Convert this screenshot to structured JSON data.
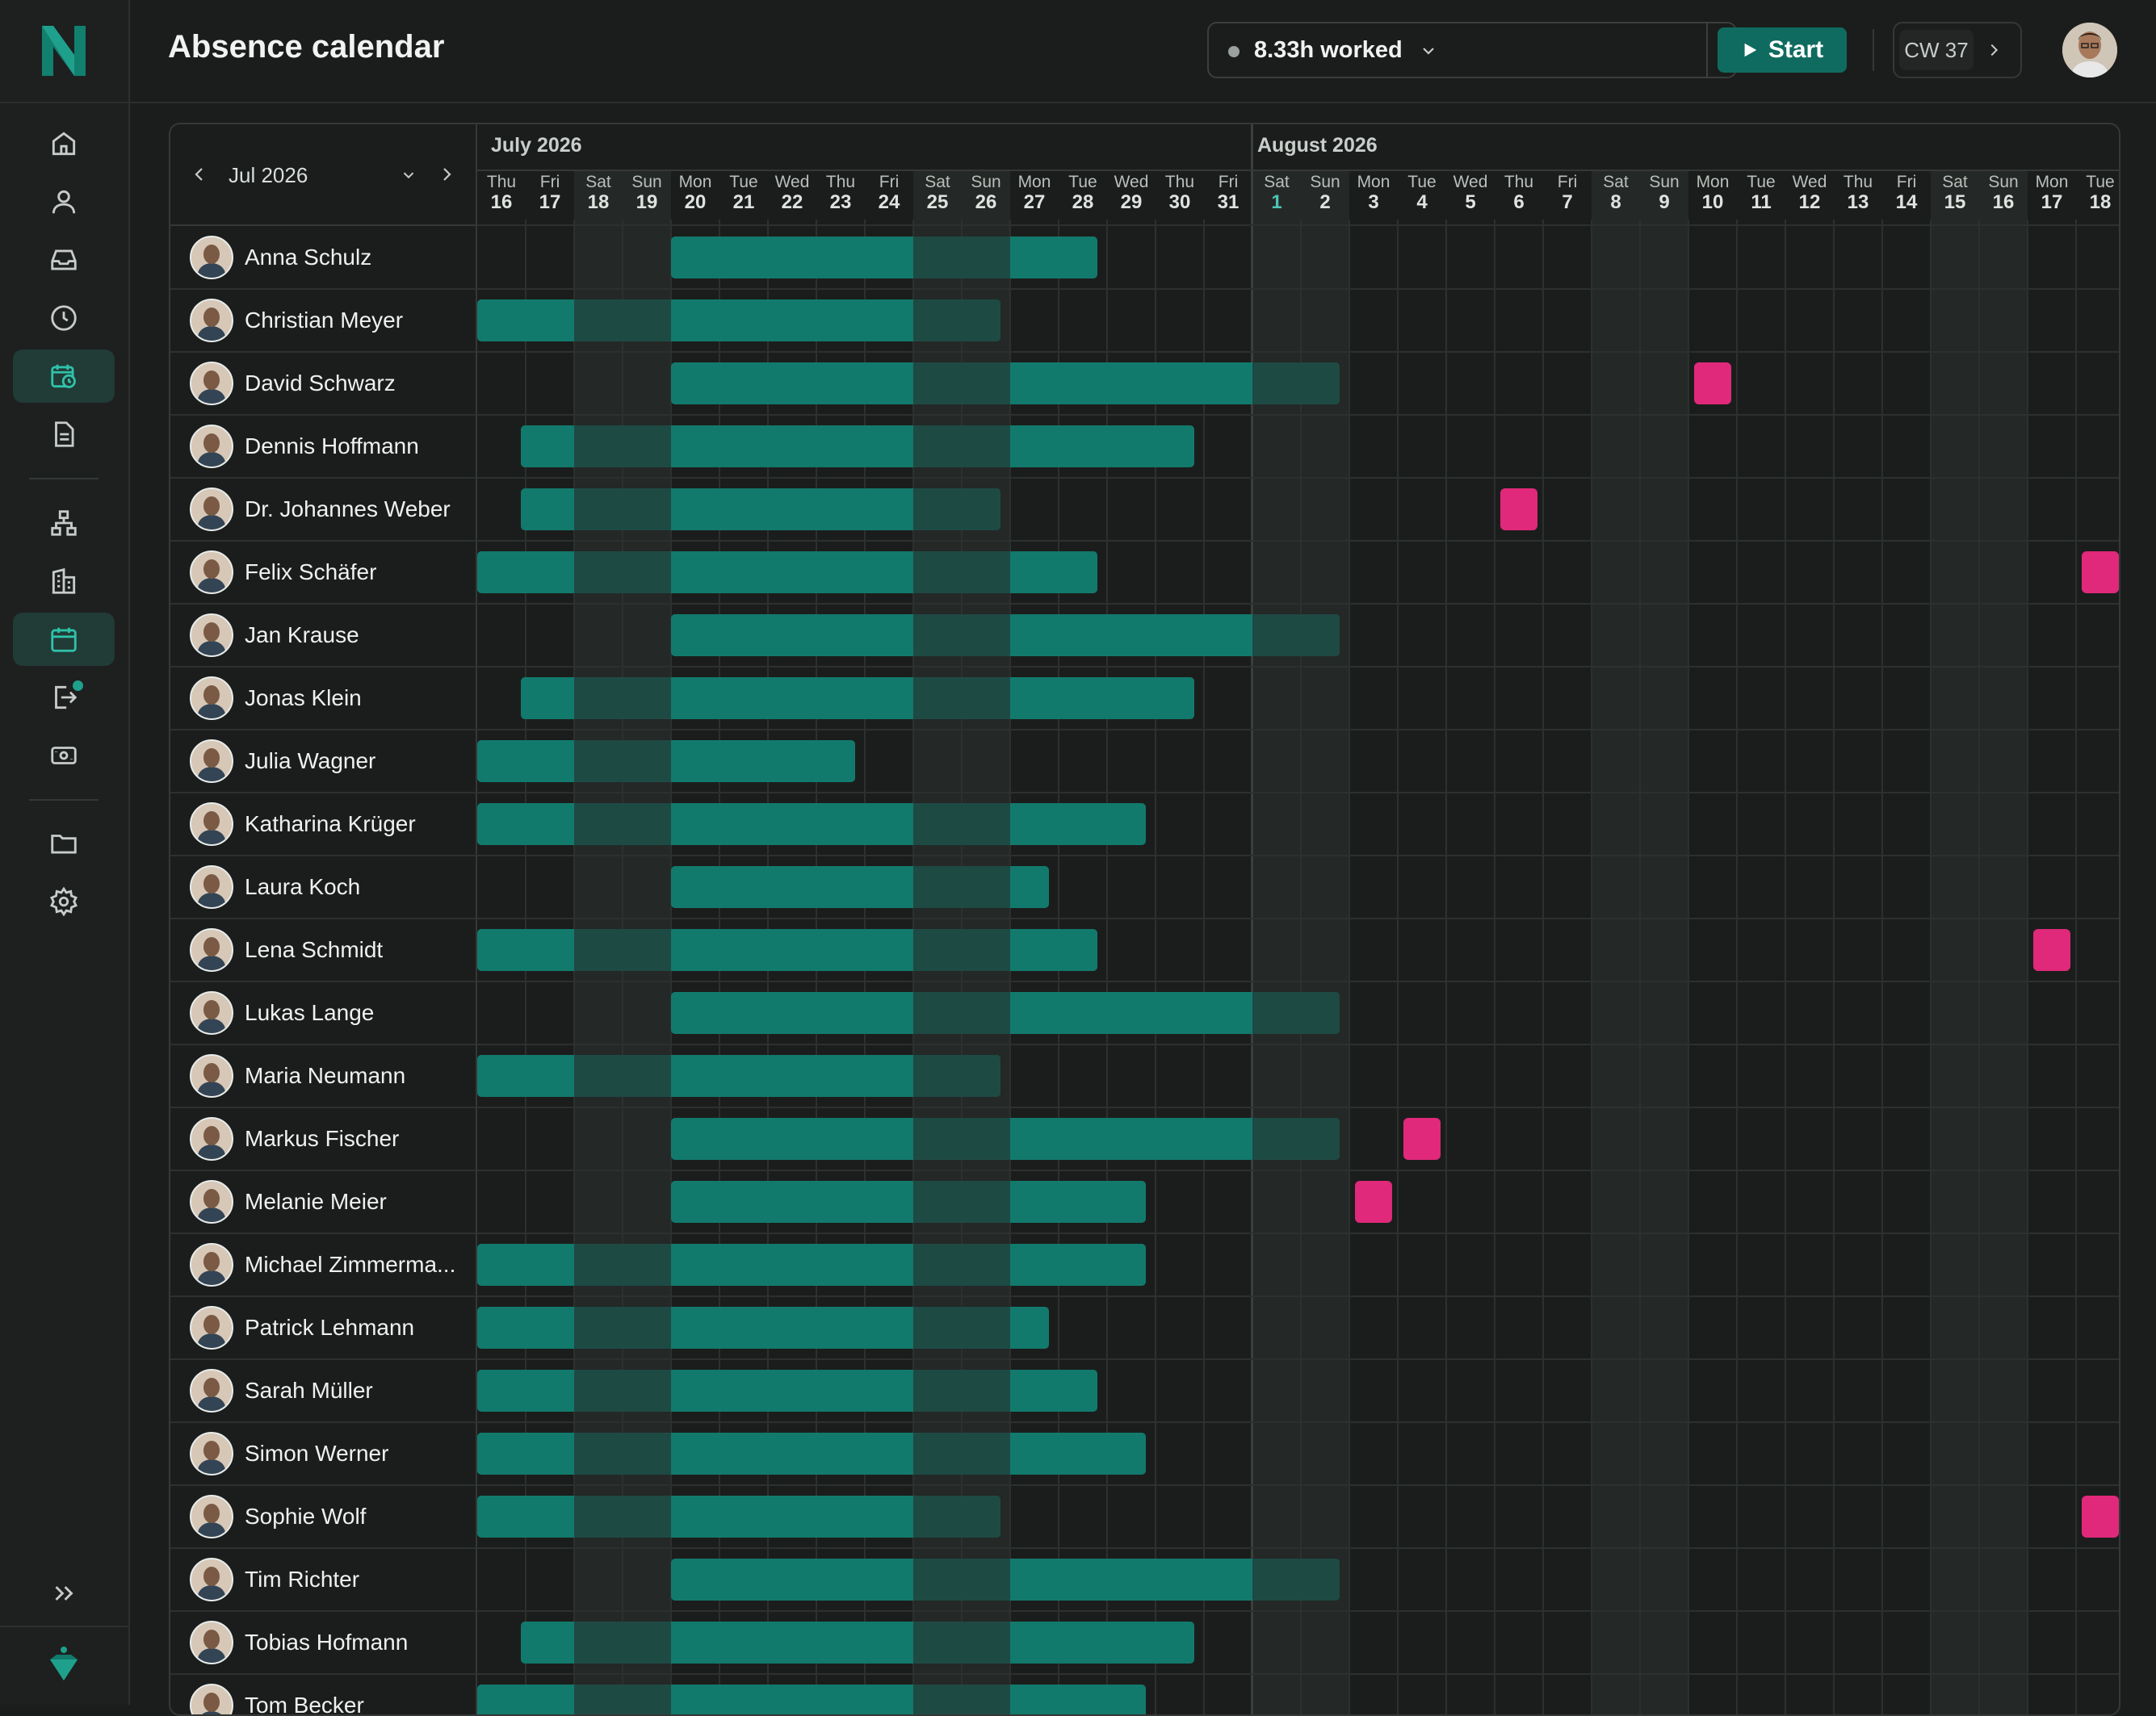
{
  "header": {
    "title": "Absence calendar",
    "tracker_text": "8.33h worked",
    "start_label": "Start",
    "calendar_week": "CW 37"
  },
  "sidebar": {
    "items": [
      "home-icon",
      "user-icon",
      "inbox-icon",
      "clock-icon",
      "calendar-clock-icon",
      "document-icon",
      "org-chart-icon",
      "building-icon",
      "calendar-icon",
      "transfer-icon",
      "money-icon",
      "folder-icon",
      "gear-icon"
    ],
    "active": [
      "calendar-clock-icon",
      "calendar-icon"
    ]
  },
  "calendar": {
    "month_nav_label": "Jul 2026",
    "months": [
      {
        "label": "July 2026"
      },
      {
        "label": "August 2026"
      }
    ],
    "days": [
      {
        "wd": "Thu",
        "d": "16"
      },
      {
        "wd": "Fri",
        "d": "17"
      },
      {
        "wd": "Sat",
        "d": "18"
      },
      {
        "wd": "Sun",
        "d": "19"
      },
      {
        "wd": "Mon",
        "d": "20"
      },
      {
        "wd": "Tue",
        "d": "21"
      },
      {
        "wd": "Wed",
        "d": "22"
      },
      {
        "wd": "Thu",
        "d": "23"
      },
      {
        "wd": "Fri",
        "d": "24"
      },
      {
        "wd": "Sat",
        "d": "25"
      },
      {
        "wd": "Sun",
        "d": "26"
      },
      {
        "wd": "Mon",
        "d": "27"
      },
      {
        "wd": "Tue",
        "d": "28"
      },
      {
        "wd": "Wed",
        "d": "29"
      },
      {
        "wd": "Thu",
        "d": "30"
      },
      {
        "wd": "Fri",
        "d": "31"
      },
      {
        "wd": "Sat",
        "d": "1"
      },
      {
        "wd": "Sun",
        "d": "2"
      },
      {
        "wd": "Mon",
        "d": "3"
      },
      {
        "wd": "Tue",
        "d": "4"
      },
      {
        "wd": "Wed",
        "d": "5"
      },
      {
        "wd": "Thu",
        "d": "6"
      },
      {
        "wd": "Fri",
        "d": "7"
      },
      {
        "wd": "Sat",
        "d": "8"
      },
      {
        "wd": "Sun",
        "d": "9"
      },
      {
        "wd": "Mon",
        "d": "10"
      },
      {
        "wd": "Tue",
        "d": "11"
      },
      {
        "wd": "Wed",
        "d": "12"
      },
      {
        "wd": "Thu",
        "d": "13"
      },
      {
        "wd": "Fri",
        "d": "14"
      },
      {
        "wd": "Sat",
        "d": "15"
      },
      {
        "wd": "Sun",
        "d": "16"
      },
      {
        "wd": "Mon",
        "d": "17"
      },
      {
        "wd": "Tue",
        "d": "18"
      }
    ],
    "today_index": 16,
    "colors": {
      "vacation": "#127a6c",
      "vacation_weekend": "#1e4a44",
      "sick": "#e0297a",
      "accent": "#1fa08c"
    },
    "employees": [
      {
        "name": "Anna Schulz",
        "vacation": [
          [
            4.0,
            12.8
          ]
        ],
        "sick": []
      },
      {
        "name": "Christian Meyer",
        "vacation": [
          [
            0.0,
            10.8
          ]
        ],
        "sick": []
      },
      {
        "name": "David Schwarz",
        "vacation": [
          [
            4.0,
            17.8
          ]
        ],
        "sick": [
          25
        ]
      },
      {
        "name": "Dennis Hoffmann",
        "vacation": [
          [
            0.9,
            14.8
          ]
        ],
        "sick": []
      },
      {
        "name": "Dr. Johannes Weber",
        "vacation": [
          [
            0.9,
            10.8
          ]
        ],
        "sick": [
          21
        ]
      },
      {
        "name": "Felix Schäfer",
        "vacation": [
          [
            0.0,
            12.8
          ]
        ],
        "sick": [
          33
        ]
      },
      {
        "name": "Jan Krause",
        "vacation": [
          [
            4.0,
            17.8
          ]
        ],
        "sick": []
      },
      {
        "name": "Jonas Klein",
        "vacation": [
          [
            0.9,
            14.8
          ]
        ],
        "sick": []
      },
      {
        "name": "Julia Wagner",
        "vacation": [
          [
            0.0,
            7.8
          ]
        ],
        "sick": []
      },
      {
        "name": "Katharina Krüger",
        "vacation": [
          [
            0.0,
            13.8
          ]
        ],
        "sick": []
      },
      {
        "name": "Laura Koch",
        "vacation": [
          [
            4.0,
            11.8
          ]
        ],
        "sick": []
      },
      {
        "name": "Lena Schmidt",
        "vacation": [
          [
            0.0,
            12.8
          ]
        ],
        "sick": [
          32
        ]
      },
      {
        "name": "Lukas Lange",
        "vacation": [
          [
            4.0,
            17.8
          ]
        ],
        "sick": []
      },
      {
        "name": "Maria Neumann",
        "vacation": [
          [
            0.0,
            10.8
          ]
        ],
        "sick": []
      },
      {
        "name": "Markus Fischer",
        "vacation": [
          [
            4.0,
            17.8
          ]
        ],
        "sick": [
          19
        ]
      },
      {
        "name": "Melanie Meier",
        "vacation": [
          [
            4.0,
            13.8
          ]
        ],
        "sick": [
          18
        ]
      },
      {
        "name": "Michael Zimmerma...",
        "vacation": [
          [
            0.0,
            13.8
          ]
        ],
        "sick": []
      },
      {
        "name": "Patrick Lehmann",
        "vacation": [
          [
            0.0,
            11.8
          ]
        ],
        "sick": []
      },
      {
        "name": "Sarah Müller",
        "vacation": [
          [
            0.0,
            12.8
          ]
        ],
        "sick": []
      },
      {
        "name": "Simon Werner",
        "vacation": [
          [
            0.0,
            13.8
          ]
        ],
        "sick": []
      },
      {
        "name": "Sophie Wolf",
        "vacation": [
          [
            0.0,
            10.8
          ]
        ],
        "sick": [
          33
        ]
      },
      {
        "name": "Tim Richter",
        "vacation": [
          [
            4.0,
            17.8
          ]
        ],
        "sick": []
      },
      {
        "name": "Tobias Hofmann",
        "vacation": [
          [
            0.9,
            14.8
          ]
        ],
        "sick": []
      },
      {
        "name": "Tom Becker",
        "vacation": [
          [
            0.0,
            13.8
          ]
        ],
        "sick": []
      }
    ]
  }
}
